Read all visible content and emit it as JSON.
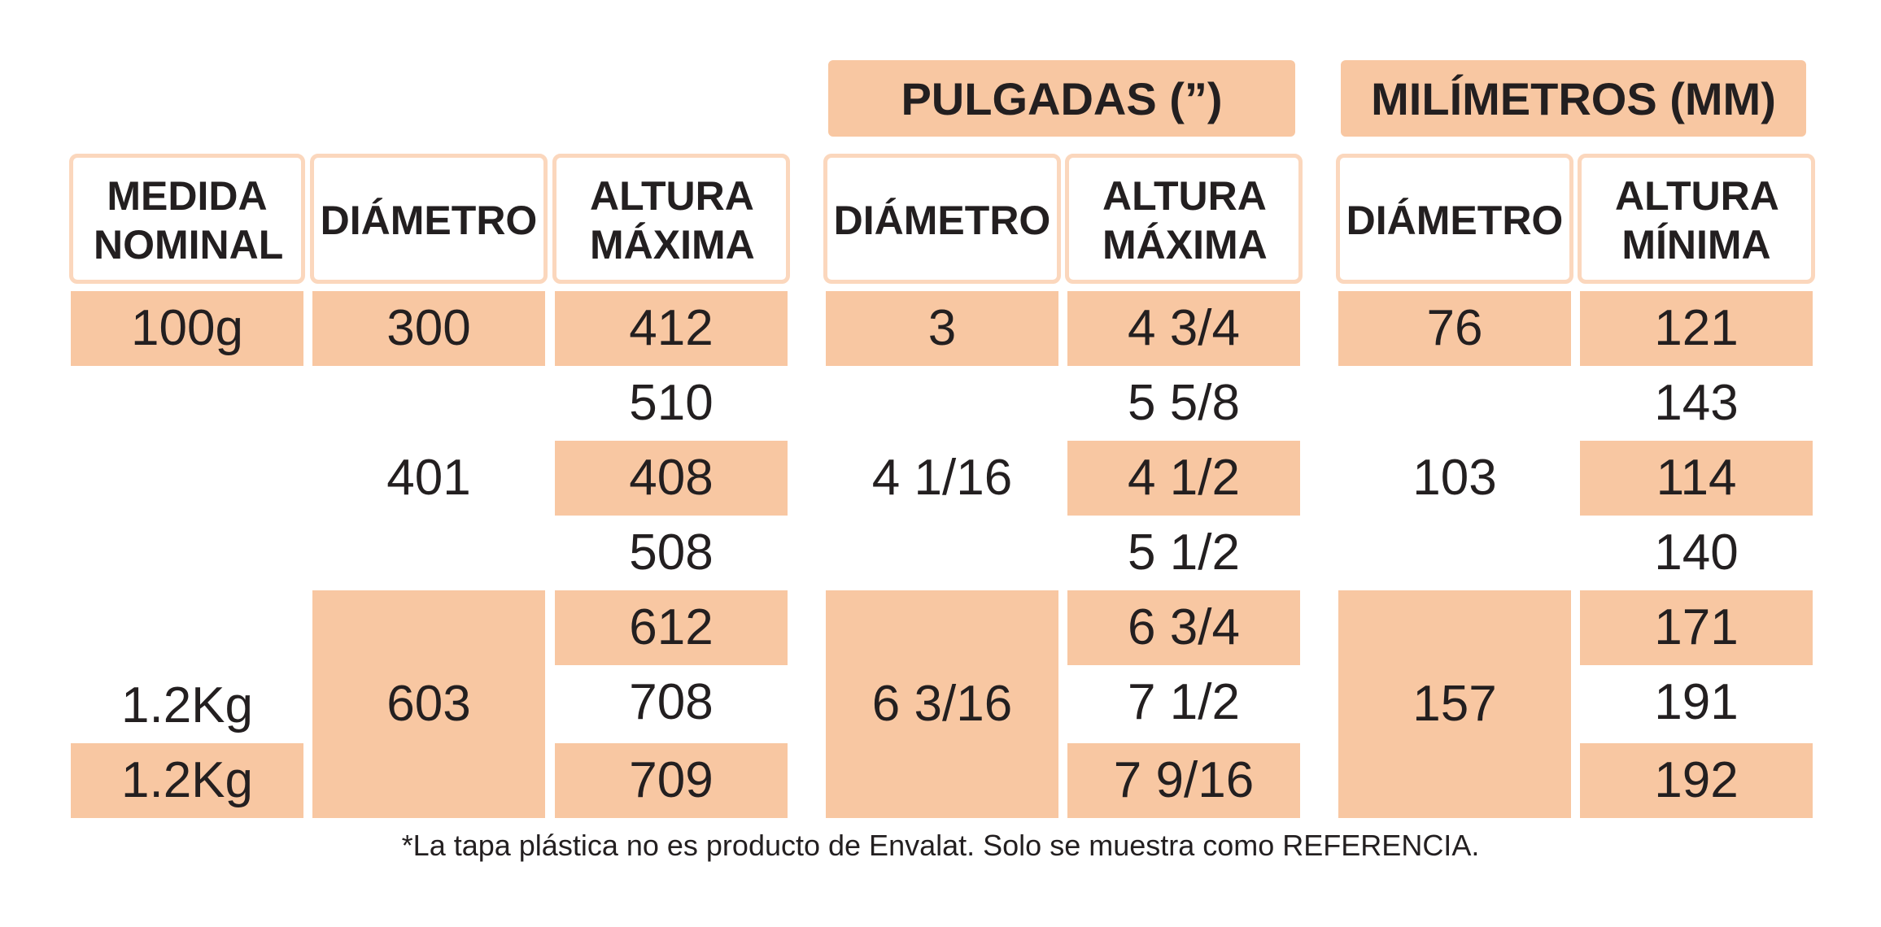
{
  "groups": {
    "pulgadas": "PULGADAS (”)",
    "milimetros": "MILÍMETROS (MM)"
  },
  "headers": {
    "medida_nominal": "MEDIDA NOMINAL",
    "diametro": "DIÁMETRO",
    "altura_maxima": "ALTURA MÁXIMA",
    "in_diametro": "DIÁMETRO",
    "in_altura_maxima": "ALTURA MÁXIMA",
    "mm_diametro": "DIÁMETRO",
    "mm_altura_minima": "ALTURA MÍNIMA"
  },
  "medida_nominal": {
    "r1": "100g",
    "r7": "1.2Kg",
    "r8": "1.2Kg"
  },
  "diametro": {
    "r1": "300",
    "g2": "401",
    "g3": "603"
  },
  "altura_maxima": [
    "412",
    "510",
    "408",
    "508",
    "612",
    "708",
    "709"
  ],
  "in_diametro": {
    "r1": "3",
    "g2": "4 1/16",
    "g3": "6 3/16"
  },
  "in_altura_maxima": [
    "4 3/4",
    "5 5/8",
    "4 1/2",
    "5 1/2",
    "6 3/4",
    "7 1/2",
    "7 9/16"
  ],
  "mm_diametro": {
    "r1": "76",
    "g2": "103",
    "g3": "157"
  },
  "mm_altura_minima": [
    "121",
    "143",
    "114",
    "140",
    "171",
    "191",
    "192"
  ],
  "footnote": "*La tapa plástica no es producto de Envalat. Solo se muestra como REFERENCIA.",
  "colors": {
    "accent_fill": "#f8c7a2",
    "header_border": "#fbd7bd",
    "text": "#231f20"
  }
}
